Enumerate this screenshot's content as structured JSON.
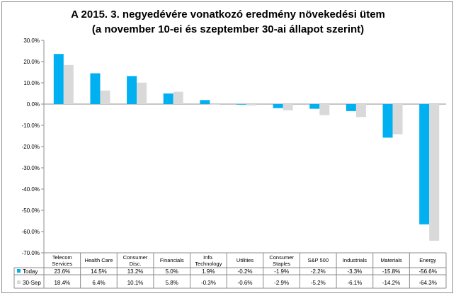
{
  "chart_data": {
    "type": "bar",
    "title": "A 2015. 3. negyedévére vonatkozó eredmény növekedési ütem",
    "subtitle": "(a november 10-ei és szeptember 30-ai állapot szerint)",
    "categories": [
      [
        "Telecom",
        "Services"
      ],
      [
        "Health Care"
      ],
      [
        "Consumer",
        "Disc."
      ],
      [
        "Financials"
      ],
      [
        "Info.",
        "Technology"
      ],
      [
        "Utilities"
      ],
      [
        "Consumer",
        "Staples"
      ],
      [
        "S&P 500"
      ],
      [
        "Industrials"
      ],
      [
        "Materials"
      ],
      [
        "Energy"
      ]
    ],
    "series": [
      {
        "name": "Today",
        "color": "#00b0f0",
        "values": [
          23.6,
          14.5,
          13.2,
          5.0,
          1.9,
          -0.2,
          -1.9,
          -2.2,
          -3.3,
          -15.8,
          -56.6
        ],
        "labels": [
          "23.6%",
          "14.5%",
          "13.2%",
          "5.0%",
          "1.9%",
          "-0.2%",
          "-1.9%",
          "-2.2%",
          "-3.3%",
          "-15.8%",
          "-56.6%"
        ]
      },
      {
        "name": "30-Sep",
        "color": "#d9d9d9",
        "values": [
          18.4,
          6.4,
          10.1,
          5.8,
          -0.3,
          -0.6,
          -2.9,
          -5.2,
          -6.1,
          -14.2,
          -64.3
        ],
        "labels": [
          "18.4%",
          "6.4%",
          "10.1%",
          "5.8%",
          "-0.3%",
          "-0.6%",
          "-2.9%",
          "-5.2%",
          "-6.1%",
          "-14.2%",
          "-64.3%"
        ]
      }
    ],
    "ylim": [
      -70,
      30
    ],
    "yticks": [
      "30.0%",
      "20.0%",
      "10.0%",
      "0.0%",
      "-10.0%",
      "-20.0%",
      "-30.0%",
      "-40.0%",
      "-50.0%",
      "-60.0%",
      "-70.0%"
    ],
    "grid": false,
    "legend": "data-table"
  }
}
